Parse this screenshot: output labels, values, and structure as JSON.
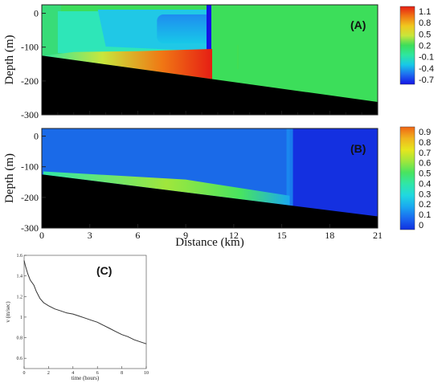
{
  "chart_data": [
    {
      "type": "heatmap",
      "panel_label": "(A)",
      "ylabel": "Depth (m)",
      "y_ticks": [
        "0",
        "-100",
        "-200",
        "-300"
      ],
      "y_tick_values": [
        0,
        -100,
        -200,
        -300
      ],
      "ylim": [
        -300,
        25
      ],
      "xlim": [
        0,
        21
      ],
      "seafloor": {
        "x": [
          0,
          21
        ],
        "depth": [
          -125,
          -262
        ]
      },
      "colorbar": {
        "ticks": [
          "1.1",
          "0.8",
          "0.5",
          "0.2",
          "-0.1",
          "-0.4",
          "-0.7"
        ],
        "range": [
          -0.75,
          1.2
        ],
        "colors": [
          "#1414e6",
          "#1e6bf0",
          "#18c8e8",
          "#2ee6a0",
          "#3cde5a",
          "#c8e63c",
          "#f0c81e",
          "#f07814",
          "#e61e14"
        ]
      },
      "background_value": 0.25
    },
    {
      "type": "heatmap",
      "panel_label": "(B)",
      "ylabel": "Depth (m)",
      "xlabel": "Distance (km)",
      "y_ticks": [
        "0",
        "-100",
        "-200",
        "-300"
      ],
      "y_tick_values": [
        0,
        -100,
        -200,
        -300
      ],
      "ylim": [
        -300,
        25
      ],
      "x_ticks": [
        "0",
        "3",
        "6",
        "9",
        "12",
        "15",
        "18",
        "21"
      ],
      "x_tick_values": [
        0,
        3,
        6,
        9,
        12,
        15,
        18,
        21
      ],
      "xlim": [
        0,
        21
      ],
      "seafloor": {
        "x": [
          0,
          21
        ],
        "depth": [
          -125,
          -262
        ]
      },
      "front_km": 15.5,
      "colorbar": {
        "ticks": [
          "0.9",
          "0.8",
          "0.7",
          "0.6",
          "0.5",
          "0.4",
          "0.3",
          "0.2",
          "0.1",
          "0"
        ],
        "range": [
          0,
          0.95
        ],
        "colors": [
          "#1030e0",
          "#1a6af0",
          "#1aa8f0",
          "#20d8e0",
          "#30e6a8",
          "#48e460",
          "#a0e63c",
          "#e6e61e",
          "#f0b41e",
          "#f06414"
        ]
      }
    },
    {
      "type": "line",
      "panel_label": "(C)",
      "xlabel": "time (hours)",
      "ylabel": "v (m/sec)",
      "xlim": [
        0,
        10
      ],
      "ylim": [
        0.5,
        1.6
      ],
      "x_ticks": [
        "0",
        "2",
        "4",
        "6",
        "8",
        "10"
      ],
      "x_tick_values": [
        0,
        2,
        4,
        6,
        8,
        10
      ],
      "y_ticks": [
        "0.6",
        "0.8",
        "1",
        "1.2",
        "1.4",
        "1.6"
      ],
      "y_tick_values": [
        0.6,
        0.8,
        1.0,
        1.2,
        1.4,
        1.6
      ],
      "series": [
        {
          "x": [
            0,
            0.1,
            0.3,
            0.5,
            0.8,
            1.0,
            1.3,
            1.6,
            2.0,
            2.5,
            3.0,
            3.5,
            4.0,
            4.5,
            5.0,
            5.5,
            6.0,
            6.5,
            7.0,
            7.5,
            8.0,
            8.5,
            9.0,
            9.5,
            10.0
          ],
          "y": [
            1.55,
            1.5,
            1.42,
            1.36,
            1.31,
            1.25,
            1.18,
            1.14,
            1.11,
            1.08,
            1.06,
            1.04,
            1.03,
            1.01,
            0.99,
            0.97,
            0.95,
            0.92,
            0.89,
            0.86,
            0.83,
            0.81,
            0.78,
            0.76,
            0.74
          ]
        }
      ]
    }
  ]
}
